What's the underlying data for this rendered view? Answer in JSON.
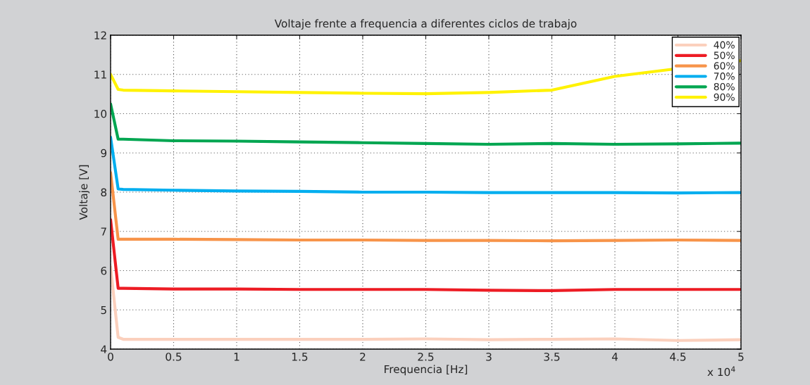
{
  "chart_data": {
    "type": "line",
    "title": "Voltaje frente a frequencia a diferentes ciclos de trabajo",
    "xlabel": "Frequencia [Hz]",
    "ylabel": "Voltaje [V]",
    "x": [
      0,
      0.06,
      0.1,
      0.5,
      1,
      1.5,
      2,
      2.5,
      3,
      3.5,
      4,
      4.5,
      5
    ],
    "series": [
      {
        "name": "40%",
        "color": "#fbd0bd",
        "values": [
          6.1,
          4.3,
          4.25,
          4.25,
          4.25,
          4.25,
          4.25,
          4.26,
          4.24,
          4.25,
          4.26,
          4.22,
          4.24
        ]
      },
      {
        "name": "50%",
        "color": "#ed1c24",
        "values": [
          7.3,
          5.55,
          5.55,
          5.53,
          5.53,
          5.52,
          5.52,
          5.52,
          5.5,
          5.49,
          5.52,
          5.52,
          5.52
        ]
      },
      {
        "name": "60%",
        "color": "#f7944a",
        "values": [
          8.5,
          6.8,
          6.8,
          6.8,
          6.79,
          6.78,
          6.78,
          6.77,
          6.77,
          6.76,
          6.77,
          6.78,
          6.77
        ]
      },
      {
        "name": "70%",
        "color": "#00aeef",
        "values": [
          9.4,
          8.08,
          8.07,
          8.05,
          8.03,
          8.02,
          8.0,
          8.0,
          7.99,
          7.99,
          7.99,
          7.98,
          7.99
        ]
      },
      {
        "name": "80%",
        "color": "#00a651",
        "values": [
          10.25,
          9.35,
          9.35,
          9.31,
          9.3,
          9.28,
          9.26,
          9.24,
          9.22,
          9.24,
          9.22,
          9.23,
          9.25
        ]
      },
      {
        "name": "90%",
        "color": "#fff200",
        "x": [
          0,
          0.06,
          0.1,
          0.5,
          1,
          1.5,
          2,
          2.5,
          3,
          3.5,
          4,
          4.45,
          5
        ],
        "values": [
          11.0,
          10.62,
          10.6,
          10.58,
          10.56,
          10.54,
          10.52,
          10.51,
          10.54,
          10.6,
          10.95,
          11.13,
          11.35
        ]
      }
    ],
    "xlim": [
      0,
      5
    ],
    "xticks": [
      0,
      0.5,
      1,
      1.5,
      2,
      2.5,
      3,
      3.5,
      4,
      4.5,
      5
    ],
    "ylim": [
      4,
      12
    ],
    "yticks": [
      4,
      5,
      6,
      7,
      8,
      9,
      10,
      11,
      12
    ],
    "annotations": [
      "x 10$^{4}$"
    ],
    "grid": true,
    "legend": "top right",
    "line_style": "solid",
    "marker": "none"
  }
}
